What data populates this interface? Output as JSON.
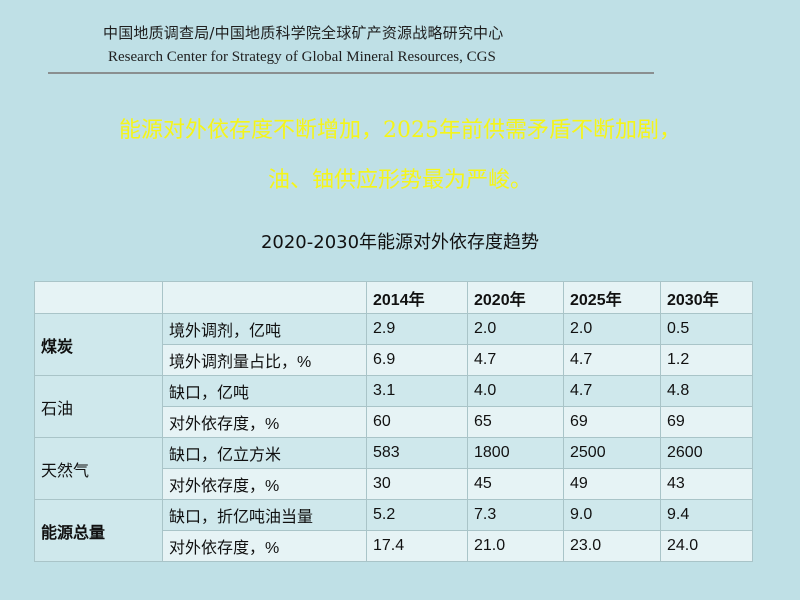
{
  "header": {
    "org_cn": "中国地质调查局/中国地质科学院全球矿产资源战略研究中心",
    "org_en": "Research Center for Strategy of Global Mineral Resources, CGS"
  },
  "headline": {
    "line1": "能源对外依存度不断增加，2025年前供需矛盾不断加剧，",
    "line2": "油、铀供应形势最为严峻。"
  },
  "table": {
    "title": "2020-2030年能源对外依存度趋势",
    "years": [
      "2014年",
      "2020年",
      "2025年",
      "2030年"
    ],
    "groups": [
      {
        "category": "煤炭",
        "rows": [
          {
            "metric": "境外调剂，亿吨",
            "values": [
              "2.9",
              "2.0",
              "2.0",
              "0.5"
            ]
          },
          {
            "metric": "境外调剂量占比，%",
            "values": [
              "6.9",
              "4.7",
              "4.7",
              "1.2"
            ]
          }
        ]
      },
      {
        "category": "石油",
        "rows": [
          {
            "metric": "缺口，亿吨",
            "values": [
              "3.1",
              "4.0",
              "4.7",
              "4.8"
            ]
          },
          {
            "metric": "对外依存度，%",
            "values": [
              "60",
              "65",
              "69",
              "69"
            ]
          }
        ]
      },
      {
        "category": "天然气",
        "rows": [
          {
            "metric": "缺口，亿立方米",
            "values": [
              "583",
              "1800",
              "2500",
              "2600"
            ]
          },
          {
            "metric": "对外依存度，%",
            "values": [
              "30",
              "45",
              "49",
              "43"
            ]
          }
        ]
      },
      {
        "category": "能源总量",
        "rows": [
          {
            "metric": "缺口，折亿吨油当量",
            "values": [
              "5.2",
              "7.3",
              "9.0",
              "9.4"
            ]
          },
          {
            "metric": "对外依存度，%",
            "values": [
              "17.4",
              "21.0",
              "23.0",
              "24.0"
            ]
          }
        ]
      }
    ]
  },
  "colors": {
    "background": "#bfe0e6",
    "headline": "#f5f51a",
    "table_band_dark": "#cfe8ec",
    "table_band_light": "#e6f3f5"
  }
}
